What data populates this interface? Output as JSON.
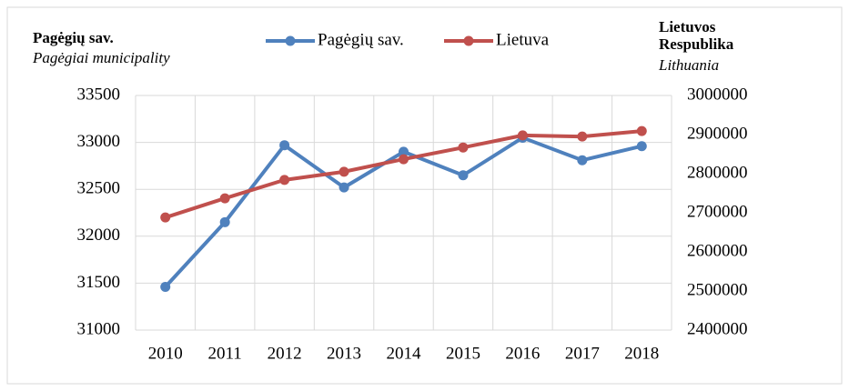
{
  "chart_data": {
    "type": "line",
    "ylabel": "Pagėgių sav.",
    "ylabel_sub": "Pagėgiai municipality",
    "y2label": [
      "Lietuvos",
      "Respublika"
    ],
    "y2label_sub": "Lithuania",
    "categories": [
      "2010",
      "2011",
      "2012",
      "2013",
      "2014",
      "2015",
      "2016",
      "2017",
      "2018"
    ],
    "series": [
      {
        "name": "Pagėgių sav.",
        "color": "#4f81bd",
        "values": [
          31460,
          32150,
          32970,
          32520,
          32900,
          32650,
          33050,
          32810,
          32960
        ]
      },
      {
        "name": "Lietuva",
        "color": "#c0504d",
        "axis": "y2",
        "values": [
          2688000,
          2737000,
          2784000,
          2805000,
          2837000,
          2867000,
          2898000,
          2895000,
          2909000
        ]
      }
    ],
    "ylim": [
      31000,
      33500
    ],
    "yticks": [
      31000,
      31500,
      32000,
      32500,
      33000,
      33500
    ],
    "y2lim": [
      2400000,
      3000000
    ],
    "y2ticks": [
      2400000,
      2500000,
      2600000,
      2700000,
      2800000,
      2900000,
      3000000
    ],
    "grid": true,
    "legend": "top"
  }
}
